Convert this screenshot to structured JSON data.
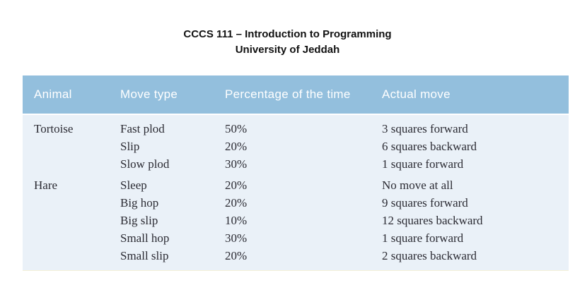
{
  "header": {
    "course_title": "CCCS 111 – Introduction to Programming",
    "university": "University of Jeddah"
  },
  "table": {
    "columns": [
      "Animal",
      "Move type",
      "Percentage of the time",
      "Actual move"
    ],
    "groups": [
      {
        "animal": "Tortoise",
        "moves": [
          {
            "move_type": "Fast plod",
            "percentage": "50%",
            "actual_move": "3 squares forward"
          },
          {
            "move_type": "Slip",
            "percentage": "20%",
            "actual_move": "6 squares backward"
          },
          {
            "move_type": "Slow plod",
            "percentage": "30%",
            "actual_move": "1 square forward"
          }
        ]
      },
      {
        "animal": "Hare",
        "moves": [
          {
            "move_type": "Sleep",
            "percentage": "20%",
            "actual_move": "No move at all"
          },
          {
            "move_type": "Big hop",
            "percentage": "20%",
            "actual_move": "9 squares forward"
          },
          {
            "move_type": "Big slip",
            "percentage": "10%",
            "actual_move": "12 squares backward"
          },
          {
            "move_type": "Small hop",
            "percentage": "30%",
            "actual_move": "1 square forward"
          },
          {
            "move_type": "Small slip",
            "percentage": "20%",
            "actual_move": "2 squares backward"
          }
        ]
      }
    ]
  },
  "colors": {
    "header_background": "#93bfdd",
    "body_background": "#eaf1f8",
    "header_text": "#ffffff",
    "body_text": "#2b2b33"
  }
}
